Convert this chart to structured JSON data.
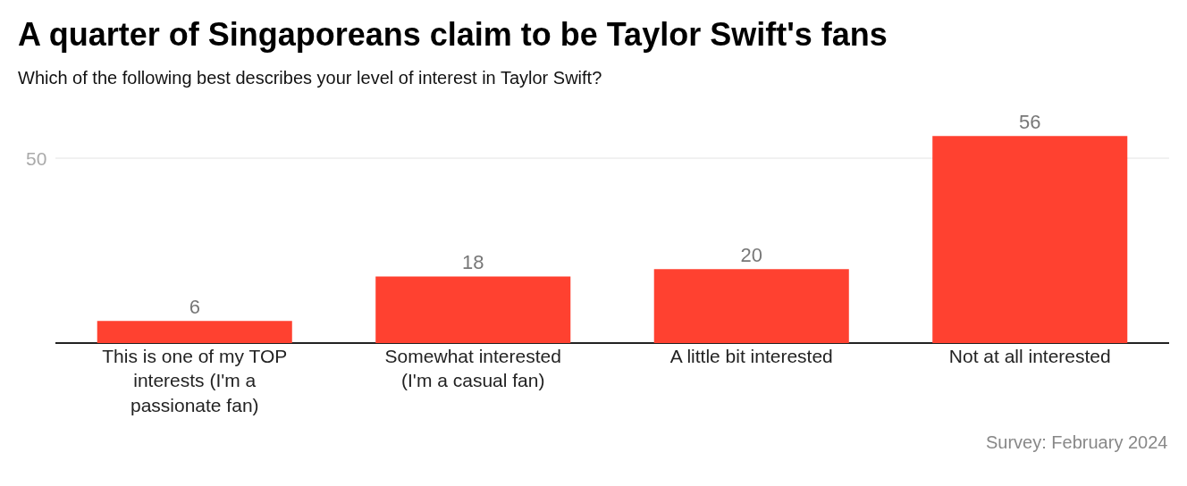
{
  "chart_data": {
    "type": "bar",
    "title": "A quarter of Singaporeans claim to be Taylor Swift's fans",
    "subtitle": "Which of the following best describes your level of interest in Taylor Swift?",
    "categories": [
      "This is one of my TOP interests (I'm a passionate fan)",
      "Somewhat interested (I'm a casual fan)",
      "A little bit interested",
      "Not at all interested"
    ],
    "values": [
      6,
      18,
      20,
      56
    ],
    "color": "#ff4130",
    "ref_lines": [
      {
        "axis": "y",
        "value": 50,
        "label": "50",
        "color": "#e3e3e3"
      }
    ],
    "data_labels": true,
    "annotations": [
      "Survey: February 2024"
    ]
  }
}
